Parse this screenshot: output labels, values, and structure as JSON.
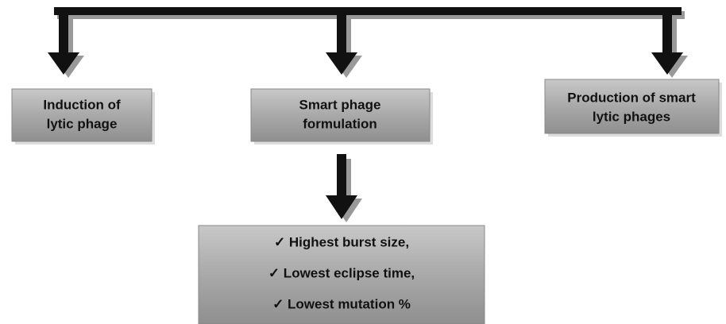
{
  "nodes": [
    {
      "lines": [
        "Induction of",
        "lytic phage"
      ]
    },
    {
      "lines": [
        "Smart phage",
        "formulation"
      ]
    },
    {
      "lines": [
        "Production of smart",
        "lytic phages"
      ]
    },
    {
      "lines": [
        "✓ Highest burst size,",
        "✓ Lowest eclipse time,",
        "✓ Lowest mutation %"
      ]
    }
  ]
}
